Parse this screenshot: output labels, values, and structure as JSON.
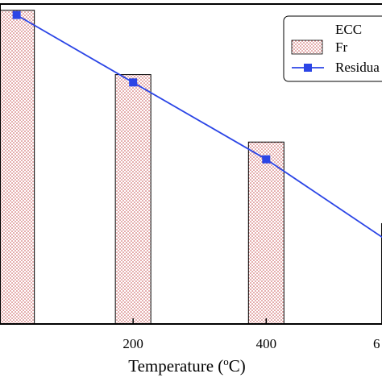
{
  "chart_data": {
    "type": "bar",
    "x": [
      25,
      200,
      400,
      600
    ],
    "x_tick_labels": [
      "200",
      "400",
      "6"
    ],
    "xlabel_main": "Temperature (",
    "xlabel_sup": "o",
    "xlabel_end": "C)",
    "xlim": [
      0,
      574
    ],
    "series": [
      {
        "name": "Fr",
        "kind": "bar",
        "values": [
          1.0,
          0.795,
          0.58,
          0.32
        ],
        "color": "#b03030"
      },
      {
        "name": "Residua",
        "kind": "line",
        "values": [
          0.985,
          0.77,
          0.525,
          0.24
        ],
        "color": "#2b45e6"
      }
    ],
    "ylim": [
      0,
      1.02
    ],
    "legend": {
      "title": "ECC",
      "placement": "top-right"
    }
  }
}
